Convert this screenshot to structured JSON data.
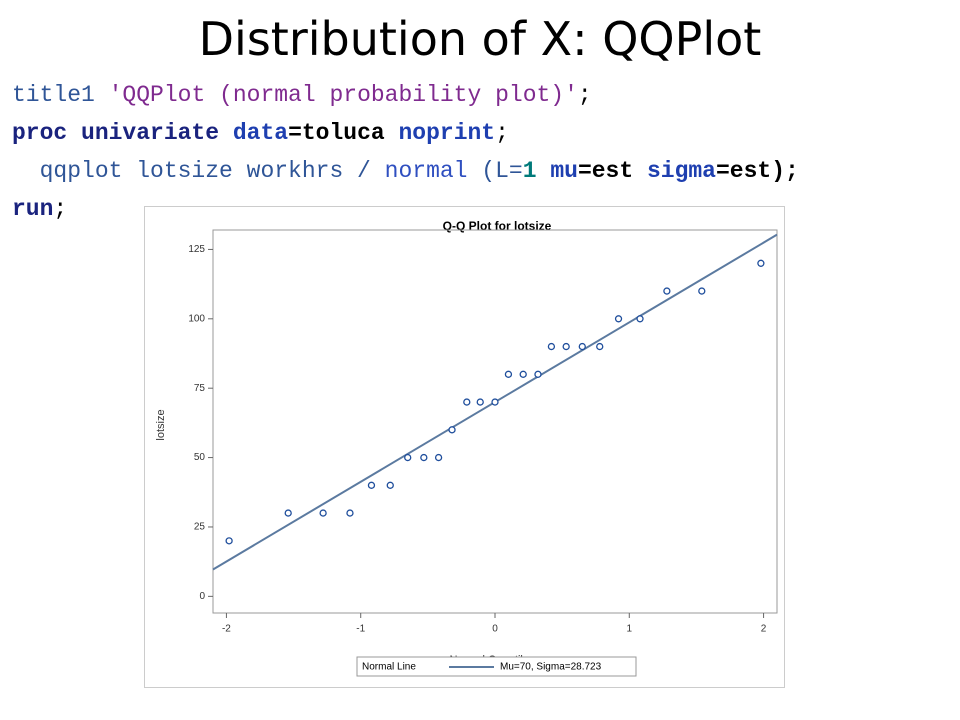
{
  "slide_title": "Distribution of X: QQPlot",
  "code": [
    [
      {
        "text": "title1 ",
        "style": "stmt"
      },
      {
        "text": "'QQPlot (normal probability plot)'",
        "style": "str"
      },
      {
        "text": ";",
        "style": "plain"
      }
    ],
    [
      {
        "text": "proc univariate",
        "style": "kw"
      },
      {
        "text": " data",
        "style": "opt"
      },
      {
        "text": "=toluca",
        "style": "boldplain"
      },
      {
        "text": " noprint",
        "style": "opt"
      },
      {
        "text": ";",
        "style": "plain"
      }
    ],
    [
      {
        "text": "  qqplot lotsize workhrs / ",
        "style": "stmt"
      },
      {
        "text": "normal",
        "style": "opt-light"
      },
      {
        "text": " (L=",
        "style": "stmt"
      },
      {
        "text": "1",
        "style": "num"
      },
      {
        "text": " mu",
        "style": "opt"
      },
      {
        "text": "=est",
        "style": "boldplain"
      },
      {
        "text": " sigma",
        "style": "opt"
      },
      {
        "text": "=est);",
        "style": "boldplain"
      }
    ],
    [
      {
        "text": "run",
        "style": "kw"
      },
      {
        "text": ";",
        "style": "plain"
      }
    ]
  ],
  "chart_data": {
    "type": "scatter",
    "title": "Q-Q Plot for lotsize",
    "x_label": "Normal Quantiles",
    "y_label": "lotsize",
    "x": [
      -1.98,
      -1.54,
      -1.28,
      -1.08,
      -0.92,
      -0.78,
      -0.65,
      -0.53,
      -0.42,
      -0.32,
      -0.21,
      -0.11,
      0,
      0.1,
      0.21,
      0.32,
      0.42,
      0.53,
      0.65,
      0.78,
      0.92,
      1.08,
      1.28,
      1.54,
      1.98
    ],
    "values": [
      20,
      30,
      30,
      30,
      40,
      40,
      50,
      50,
      50,
      60,
      70,
      70,
      70,
      80,
      80,
      80,
      90,
      90,
      90,
      90,
      100,
      100,
      110,
      110,
      120
    ],
    "color": "#1f4e9c",
    "xlim": [
      -2.1,
      2.1
    ],
    "ylim": [
      -6,
      132
    ],
    "xticks": [
      -2,
      -1,
      0,
      1,
      2
    ],
    "yticks": [
      0,
      25,
      50,
      75,
      100,
      125
    ],
    "reference_line": {
      "name": "Normal Line",
      "label": "Mu=70, Sigma=28.723",
      "mu": 70,
      "sigma": 28.723,
      "color": "#5b7aa0"
    }
  }
}
